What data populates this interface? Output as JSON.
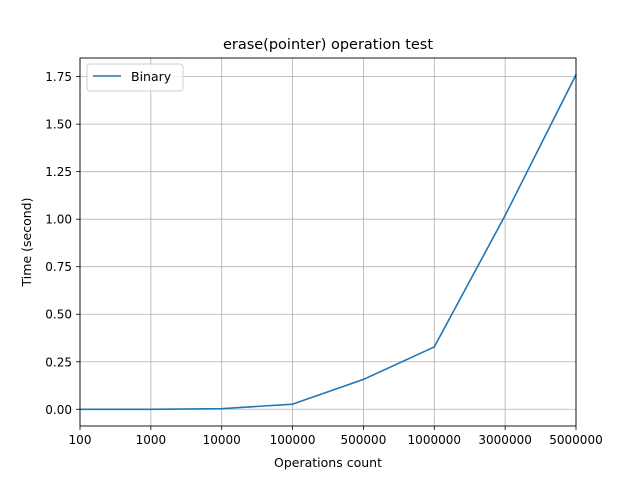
{
  "chart_data": {
    "type": "line",
    "title": "erase(pointer) operation test",
    "xlabel": "Operations count",
    "ylabel": "Time (second)",
    "categories": [
      "100",
      "1000",
      "10000",
      "100000",
      "500000",
      "1000000",
      "3000000",
      "5000000"
    ],
    "series": [
      {
        "name": "Binary",
        "color": "#1f77b4",
        "values": [
          0.0,
          0.0,
          0.003,
          0.027,
          0.157,
          0.328,
          1.02,
          1.76
        ]
      }
    ],
    "ylim": [
      -0.088,
      1.848
    ],
    "yticks": [
      "0.00",
      "0.25",
      "0.50",
      "0.75",
      "1.00",
      "1.25",
      "1.50",
      "1.75"
    ],
    "grid": true,
    "legend_position": "top-left"
  }
}
